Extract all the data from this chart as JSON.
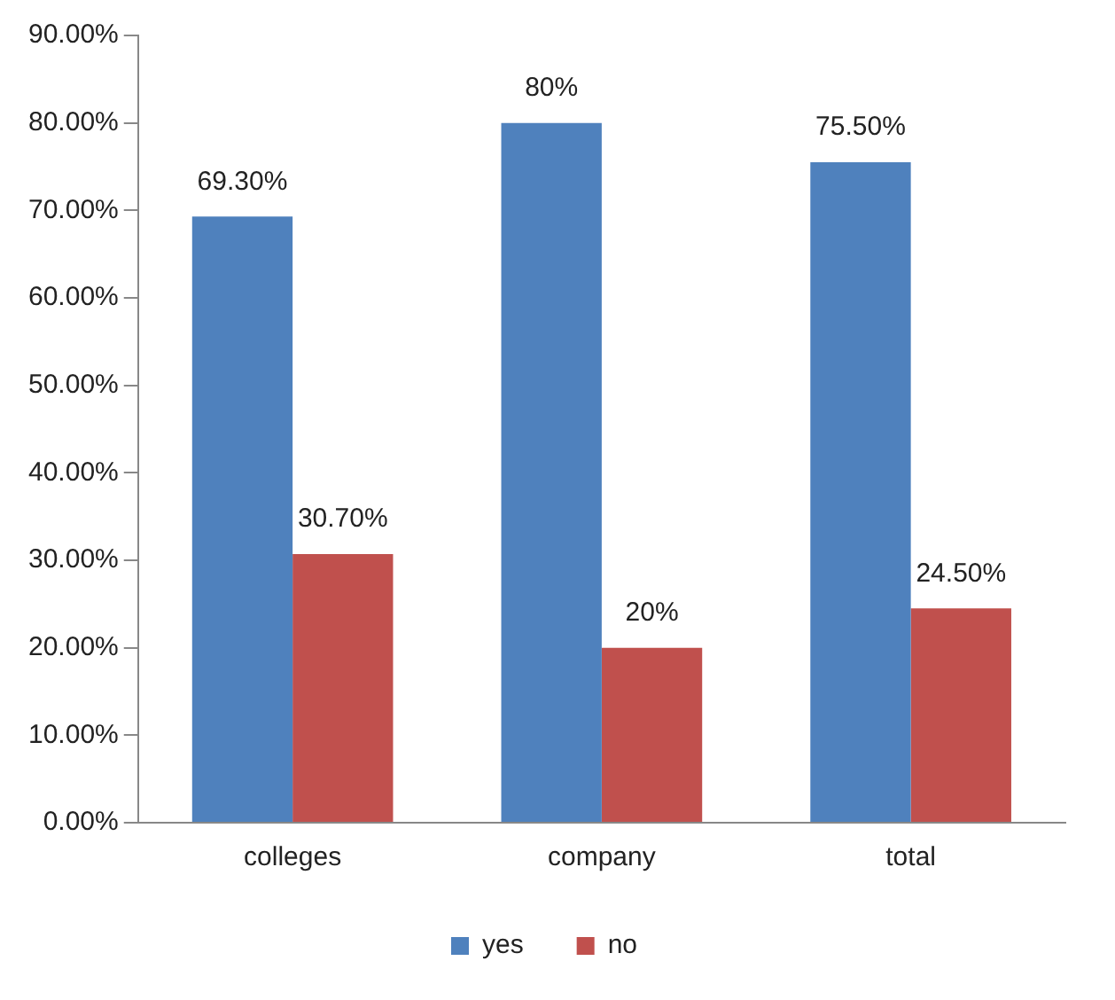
{
  "chart_data": {
    "type": "bar",
    "categories": [
      "colleges",
      "company",
      "total"
    ],
    "series": [
      {
        "name": "yes",
        "color": "#4f81bd",
        "values": [
          69.3,
          80,
          75.5
        ],
        "value_labels": [
          "69.30%",
          "80%",
          "75.50%"
        ]
      },
      {
        "name": "no",
        "color": "#c0504d",
        "values": [
          30.7,
          20,
          24.5
        ],
        "value_labels": [
          "30.70%",
          "20%",
          "24.50%"
        ]
      }
    ],
    "ylim": [
      0,
      90
    ],
    "yticks": [
      {
        "value": 0,
        "label": "0.00%"
      },
      {
        "value": 10,
        "label": "10.00%"
      },
      {
        "value": 20,
        "label": "20.00%"
      },
      {
        "value": 30,
        "label": "30.00%"
      },
      {
        "value": 40,
        "label": "40.00%"
      },
      {
        "value": 50,
        "label": "50.00%"
      },
      {
        "value": 60,
        "label": "60.00%"
      },
      {
        "value": 70,
        "label": "70.00%"
      },
      {
        "value": 80,
        "label": "80.00%"
      },
      {
        "value": 90,
        "label": "90.00%"
      }
    ],
    "grid": false,
    "legend": "bottom"
  }
}
